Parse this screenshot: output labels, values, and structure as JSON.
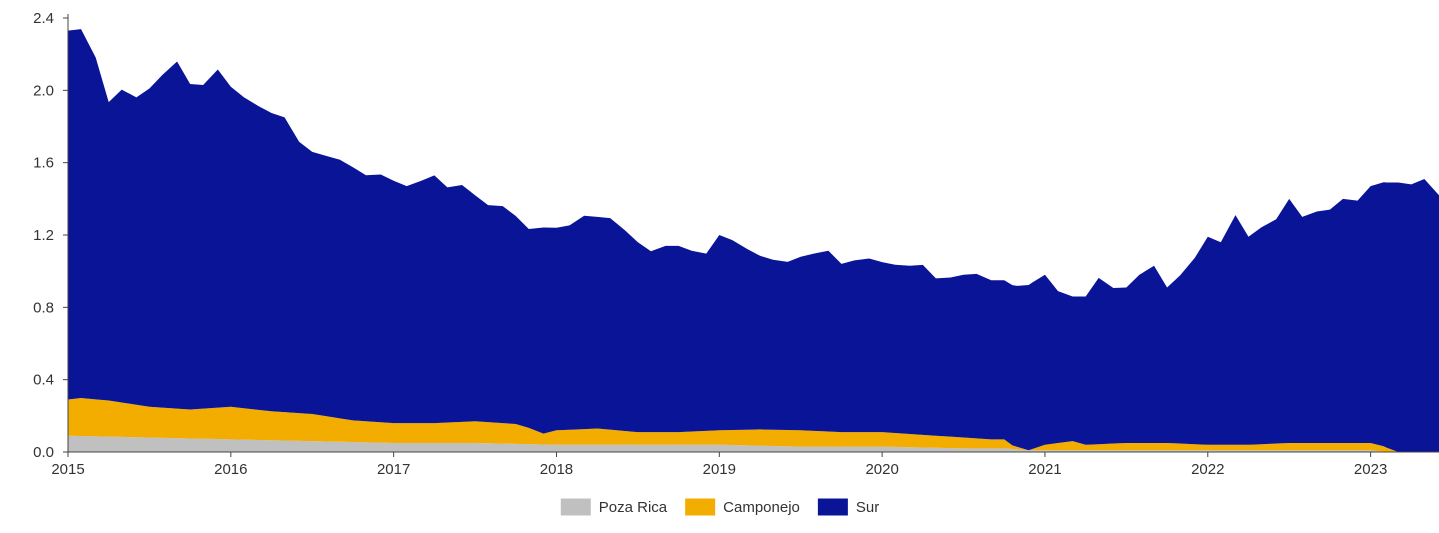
{
  "chart_data": {
    "type": "area",
    "stacked": true,
    "title": "",
    "xlabel": "",
    "ylabel": "",
    "ylim": [
      0,
      2.4
    ],
    "yticks": [
      "0.0",
      "0.4",
      "0.8",
      "1.2",
      "1.6",
      "2.0",
      "2.4"
    ],
    "xticks": [
      "2015",
      "2016",
      "2017",
      "2018",
      "2019",
      "2020",
      "2021",
      "2022",
      "2023"
    ],
    "xlim": [
      2015.0,
      2023.42
    ],
    "grid": false,
    "legend_position": "bottom-center",
    "series": [
      {
        "name": "Poza Rica",
        "color": "#c0c0c0",
        "x": [
          2015.0,
          2015.5,
          2016.0,
          2016.5,
          2017.0,
          2017.5,
          2018.0,
          2018.5,
          2019.0,
          2019.5,
          2020.0,
          2020.5,
          2020.75,
          2020.9,
          2021.0,
          2021.5,
          2022.0,
          2022.5,
          2023.0,
          2023.1,
          2023.42
        ],
        "values": [
          0.09,
          0.08,
          0.07,
          0.06,
          0.05,
          0.05,
          0.04,
          0.04,
          0.04,
          0.03,
          0.03,
          0.02,
          0.02,
          0.01,
          0.01,
          0.01,
          0.01,
          0.01,
          0.01,
          0.0,
          0.0
        ]
      },
      {
        "name": "Camponejo",
        "color": "#f2ad00",
        "x": [
          2015.0,
          2015.08,
          2015.25,
          2015.5,
          2015.75,
          2016.0,
          2016.25,
          2016.5,
          2016.75,
          2017.0,
          2017.25,
          2017.5,
          2017.75,
          2017.83,
          2017.92,
          2018.0,
          2018.25,
          2018.5,
          2018.75,
          2019.0,
          2019.25,
          2019.5,
          2019.75,
          2020.0,
          2020.25,
          2020.5,
          2020.67,
          2020.75,
          2020.8,
          2020.9,
          2021.0,
          2021.17,
          2021.25,
          2021.5,
          2021.75,
          2022.0,
          2022.25,
          2022.5,
          2022.75,
          2023.0,
          2023.08,
          2023.17,
          2023.42
        ],
        "values": [
          0.2,
          0.21,
          0.2,
          0.17,
          0.16,
          0.18,
          0.16,
          0.15,
          0.12,
          0.11,
          0.11,
          0.12,
          0.11,
          0.09,
          0.06,
          0.08,
          0.09,
          0.07,
          0.07,
          0.08,
          0.09,
          0.09,
          0.08,
          0.08,
          0.07,
          0.06,
          0.05,
          0.05,
          0.02,
          0.0,
          0.03,
          0.05,
          0.03,
          0.04,
          0.04,
          0.03,
          0.03,
          0.04,
          0.04,
          0.04,
          0.03,
          0.0,
          0.0
        ]
      },
      {
        "name": "Sur",
        "color": "#0a1496",
        "x": [
          2015.0,
          2015.08,
          2015.17,
          2015.25,
          2015.33,
          2015.42,
          2015.5,
          2015.58,
          2015.67,
          2015.75,
          2015.83,
          2015.92,
          2016.0,
          2016.08,
          2016.17,
          2016.25,
          2016.33,
          2016.42,
          2016.5,
          2016.58,
          2016.67,
          2016.75,
          2016.83,
          2016.92,
          2017.0,
          2017.08,
          2017.17,
          2017.25,
          2017.33,
          2017.42,
          2017.5,
          2017.58,
          2017.67,
          2017.75,
          2017.83,
          2017.92,
          2018.0,
          2018.08,
          2018.17,
          2018.25,
          2018.33,
          2018.42,
          2018.5,
          2018.58,
          2018.67,
          2018.75,
          2018.83,
          2018.92,
          2019.0,
          2019.08,
          2019.17,
          2019.25,
          2019.33,
          2019.42,
          2019.5,
          2019.58,
          2019.67,
          2019.75,
          2019.83,
          2019.92,
          2020.0,
          2020.08,
          2020.17,
          2020.25,
          2020.33,
          2020.42,
          2020.5,
          2020.58,
          2020.67,
          2020.75,
          2020.83,
          2020.92,
          2021.0,
          2021.08,
          2021.17,
          2021.25,
          2021.33,
          2021.42,
          2021.5,
          2021.58,
          2021.67,
          2021.75,
          2021.83,
          2021.92,
          2022.0,
          2022.08,
          2022.17,
          2022.25,
          2022.33,
          2022.42,
          2022.5,
          2022.58,
          2022.67,
          2022.75,
          2022.83,
          2022.92,
          2023.0,
          2023.08,
          2023.17,
          2023.25,
          2023.33,
          2023.42
        ],
        "values": [
          2.04,
          2.04,
          1.89,
          1.65,
          1.73,
          1.7,
          1.76,
          1.84,
          1.92,
          1.8,
          1.79,
          1.87,
          1.77,
          1.72,
          1.68,
          1.65,
          1.63,
          1.5,
          1.45,
          1.44,
          1.43,
          1.4,
          1.36,
          1.37,
          1.34,
          1.31,
          1.34,
          1.37,
          1.3,
          1.31,
          1.25,
          1.2,
          1.2,
          1.15,
          1.1,
          1.14,
          1.12,
          1.13,
          1.18,
          1.17,
          1.17,
          1.11,
          1.05,
          1.0,
          1.03,
          1.03,
          1.0,
          0.98,
          1.08,
          1.05,
          1.0,
          0.96,
          0.94,
          0.93,
          0.96,
          0.98,
          1.0,
          0.93,
          0.95,
          0.96,
          0.94,
          0.93,
          0.93,
          0.94,
          0.87,
          0.88,
          0.9,
          0.91,
          0.88,
          0.88,
          0.89,
          0.92,
          0.94,
          0.84,
          0.8,
          0.82,
          0.92,
          0.86,
          0.86,
          0.93,
          0.98,
          0.86,
          0.93,
          1.03,
          1.15,
          1.12,
          1.27,
          1.15,
          1.2,
          1.24,
          1.35,
          1.25,
          1.28,
          1.29,
          1.35,
          1.34,
          1.42,
          1.46,
          1.49,
          1.48,
          1.51,
          1.42
        ]
      }
    ]
  }
}
